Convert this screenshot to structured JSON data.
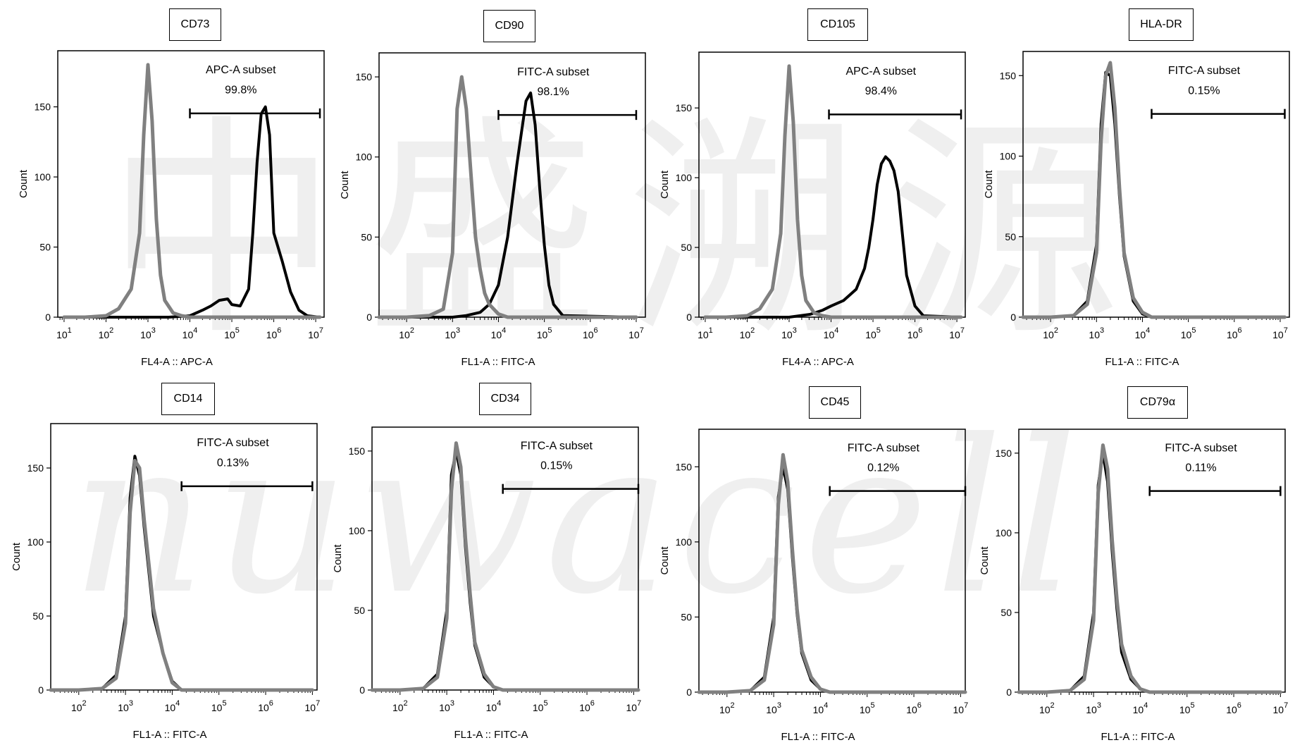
{
  "watermark": {
    "cjk_line": "中盛溯源",
    "latin_line": "nuwacell"
  },
  "colors": {
    "stained": "#000000",
    "isotype": "#808080",
    "frame": "#000000"
  },
  "chart_data": [
    {
      "type": "line",
      "marker": "CD73",
      "gate_label": "APC-A subset",
      "gate_percent": "99.8%",
      "gate_range_log10": [
        4.0,
        7.1
      ],
      "xlabel": "FL4-A :: APC-A",
      "ylabel": "Count",
      "x_scale": "log",
      "xlim_log10": [
        0.85,
        7.2
      ],
      "x_ticks": [
        "1",
        "2",
        "3",
        "4",
        "5",
        "6",
        "7"
      ],
      "ylim": [
        0,
        190
      ],
      "y_ticks": [
        0,
        50,
        100,
        150
      ],
      "series": [
        {
          "role": "isotype",
          "x_log10": [
            1.0,
            1.5,
            2.0,
            2.3,
            2.6,
            2.8,
            2.9,
            3.0,
            3.1,
            3.2,
            3.3,
            3.4,
            3.6,
            3.8,
            4.0,
            7.1
          ],
          "y": [
            0,
            0,
            1,
            6,
            20,
            60,
            130,
            180,
            140,
            70,
            30,
            12,
            3,
            1,
            0,
            0
          ]
        },
        {
          "role": "stained",
          "x_log10": [
            1.0,
            3.5,
            4.0,
            4.3,
            4.5,
            4.7,
            4.9,
            5.0,
            5.2,
            5.4,
            5.5,
            5.6,
            5.7,
            5.8,
            5.9,
            6.0,
            6.2,
            6.4,
            6.6,
            6.8,
            7.1
          ],
          "y": [
            0,
            0,
            1,
            5,
            8,
            12,
            13,
            9,
            8,
            20,
            60,
            110,
            145,
            150,
            130,
            60,
            40,
            18,
            5,
            1,
            0
          ]
        }
      ]
    },
    {
      "type": "line",
      "marker": "CD90",
      "gate_label": "FITC-A subset",
      "gate_percent": "98.1%",
      "gate_range_log10": [
        4.0,
        7.0
      ],
      "xlabel": "FL1-A :: FITC-A",
      "ylabel": "Count",
      "x_scale": "log",
      "xlim_log10": [
        1.4,
        7.2
      ],
      "x_ticks": [
        "2",
        "3",
        "4",
        "5",
        "6",
        "7"
      ],
      "ylim": [
        0,
        165
      ],
      "y_ticks": [
        0,
        50,
        100,
        150
      ],
      "series": [
        {
          "role": "isotype",
          "x_log10": [
            1.4,
            2.0,
            2.5,
            2.8,
            3.0,
            3.1,
            3.2,
            3.3,
            3.4,
            3.5,
            3.6,
            3.7,
            3.8,
            4.0,
            4.2,
            7.0
          ],
          "y": [
            0,
            0,
            1,
            5,
            40,
            130,
            150,
            130,
            90,
            50,
            30,
            15,
            8,
            2,
            0,
            0
          ]
        },
        {
          "role": "stained",
          "x_log10": [
            1.4,
            3.0,
            3.3,
            3.6,
            3.8,
            4.0,
            4.2,
            4.4,
            4.5,
            4.6,
            4.7,
            4.8,
            4.9,
            5.0,
            5.1,
            5.2,
            5.4,
            7.0
          ],
          "y": [
            0,
            0,
            1,
            3,
            8,
            20,
            50,
            95,
            115,
            135,
            140,
            120,
            80,
            45,
            20,
            8,
            1,
            0
          ]
        }
      ]
    },
    {
      "type": "line",
      "marker": "CD105",
      "gate_label": "APC-A subset",
      "gate_percent": "98.4%",
      "gate_range_log10": [
        3.95,
        7.1
      ],
      "xlabel": "FL4-A :: APC-A",
      "ylabel": "Count",
      "x_scale": "log",
      "xlim_log10": [
        0.85,
        7.2
      ],
      "x_ticks": [
        "1",
        "2",
        "3",
        "4",
        "5",
        "6",
        "7"
      ],
      "ylim": [
        0,
        190
      ],
      "y_ticks": [
        0,
        50,
        100,
        150
      ],
      "series": [
        {
          "role": "isotype",
          "x_log10": [
            1.0,
            1.5,
            2.0,
            2.3,
            2.6,
            2.8,
            2.9,
            3.0,
            3.1,
            3.2,
            3.3,
            3.4,
            3.6,
            3.8,
            4.0,
            7.1
          ],
          "y": [
            0,
            0,
            1,
            6,
            20,
            60,
            130,
            180,
            140,
            70,
            30,
            12,
            3,
            1,
            0,
            0
          ]
        },
        {
          "role": "stained",
          "x_log10": [
            1.0,
            3.0,
            3.5,
            3.8,
            4.0,
            4.3,
            4.6,
            4.8,
            4.9,
            5.0,
            5.1,
            5.2,
            5.3,
            5.4,
            5.5,
            5.6,
            5.7,
            5.8,
            6.0,
            6.2,
            7.1
          ],
          "y": [
            0,
            0,
            2,
            5,
            8,
            12,
            20,
            35,
            50,
            70,
            95,
            110,
            115,
            112,
            105,
            90,
            60,
            30,
            8,
            1,
            0
          ]
        }
      ]
    },
    {
      "type": "line",
      "marker": "HLA-DR",
      "gate_label": "FITC-A subset",
      "gate_percent": "0.15%",
      "gate_range_log10": [
        4.2,
        7.1
      ],
      "xlabel": "FL1-A :: FITC-A",
      "ylabel": "Count",
      "x_scale": "log",
      "xlim_log10": [
        1.4,
        7.2
      ],
      "x_ticks": [
        "2",
        "3",
        "4",
        "5",
        "6",
        "7"
      ],
      "ylim": [
        0,
        165
      ],
      "y_ticks": [
        0,
        50,
        100,
        150
      ],
      "series": [
        {
          "role": "isotype",
          "x_log10": [
            1.4,
            2.0,
            2.5,
            2.8,
            3.0,
            3.1,
            3.2,
            3.3,
            3.4,
            3.5,
            3.6,
            3.8,
            4.0,
            4.2,
            7.1
          ],
          "y": [
            0,
            0,
            1,
            8,
            40,
            110,
            150,
            158,
            130,
            80,
            40,
            12,
            3,
            0,
            0
          ]
        },
        {
          "role": "stained",
          "x_log10": [
            1.4,
            2.0,
            2.5,
            2.8,
            3.0,
            3.1,
            3.2,
            3.3,
            3.4,
            3.5,
            3.6,
            3.8,
            4.0,
            4.2,
            7.1
          ],
          "y": [
            0,
            0,
            1,
            10,
            45,
            120,
            152,
            150,
            120,
            75,
            38,
            10,
            2,
            0,
            0
          ]
        }
      ]
    },
    {
      "type": "line",
      "marker": "CD14",
      "gate_label": "FITC-A subset",
      "gate_percent": "0.13%",
      "gate_range_log10": [
        4.2,
        7.0
      ],
      "xlabel": "FL1-A :: FITC-A",
      "ylabel": "Count",
      "x_scale": "log",
      "xlim_log10": [
        1.4,
        7.1
      ],
      "x_ticks": [
        "2",
        "3",
        "4",
        "5",
        "6",
        "7"
      ],
      "ylim": [
        0,
        180
      ],
      "y_ticks": [
        0,
        50,
        100,
        150
      ],
      "series": [
        {
          "role": "isotype",
          "x_log10": [
            1.4,
            2.0,
            2.5,
            2.8,
            3.0,
            3.1,
            3.2,
            3.3,
            3.4,
            3.5,
            3.6,
            3.8,
            4.0,
            4.2,
            7.0
          ],
          "y": [
            0,
            0,
            1,
            8,
            45,
            120,
            155,
            150,
            115,
            85,
            55,
            25,
            5,
            0,
            0
          ]
        },
        {
          "role": "stained",
          "x_log10": [
            1.4,
            2.0,
            2.5,
            2.8,
            3.0,
            3.1,
            3.2,
            3.3,
            3.4,
            3.5,
            3.6,
            3.8,
            4.0,
            4.2,
            7.0
          ],
          "y": [
            0,
            0,
            1,
            10,
            50,
            130,
            158,
            145,
            110,
            80,
            50,
            25,
            6,
            0,
            0
          ]
        }
      ]
    },
    {
      "type": "line",
      "marker": "CD34",
      "gate_label": "FITC-A subset",
      "gate_percent": "0.15%",
      "gate_range_log10": [
        4.2,
        7.1
      ],
      "xlabel": "FL1-A :: FITC-A",
      "ylabel": "Count",
      "x_scale": "log",
      "xlim_log10": [
        1.4,
        7.1
      ],
      "x_ticks": [
        "2",
        "3",
        "4",
        "5",
        "6",
        "7"
      ],
      "ylim": [
        0,
        165
      ],
      "y_ticks": [
        0,
        50,
        100,
        150
      ],
      "series": [
        {
          "role": "isotype",
          "x_log10": [
            1.4,
            2.0,
            2.5,
            2.8,
            3.0,
            3.1,
            3.2,
            3.3,
            3.4,
            3.5,
            3.6,
            3.8,
            4.0,
            4.2,
            7.1
          ],
          "y": [
            0,
            0,
            1,
            8,
            45,
            125,
            155,
            140,
            95,
            60,
            30,
            10,
            2,
            0,
            0
          ]
        },
        {
          "role": "stained",
          "x_log10": [
            1.4,
            2.0,
            2.5,
            2.8,
            3.0,
            3.1,
            3.2,
            3.3,
            3.4,
            3.5,
            3.6,
            3.8,
            4.0,
            4.2,
            7.1
          ],
          "y": [
            0,
            0,
            1,
            10,
            50,
            135,
            150,
            135,
            90,
            55,
            28,
            8,
            2,
            0,
            0
          ]
        }
      ]
    },
    {
      "type": "line",
      "marker": "CD45",
      "gate_label": "FITC-A subset",
      "gate_percent": "0.12%",
      "gate_range_log10": [
        4.2,
        7.1
      ],
      "xlabel": "FL1-A :: FITC-A",
      "ylabel": "Count",
      "x_scale": "log",
      "xlim_log10": [
        1.4,
        7.1
      ],
      "x_ticks": [
        "2",
        "3",
        "4",
        "5",
        "6",
        "7"
      ],
      "ylim": [
        0,
        175
      ],
      "y_ticks": [
        0,
        50,
        100,
        150
      ],
      "series": [
        {
          "role": "isotype",
          "x_log10": [
            1.4,
            2.0,
            2.5,
            2.8,
            3.0,
            3.1,
            3.2,
            3.3,
            3.4,
            3.5,
            3.6,
            3.8,
            4.0,
            4.2,
            7.1
          ],
          "y": [
            0,
            0,
            1,
            8,
            45,
            125,
            158,
            140,
            95,
            55,
            28,
            10,
            2,
            0,
            0
          ]
        },
        {
          "role": "stained",
          "x_log10": [
            1.4,
            2.0,
            2.5,
            2.8,
            3.0,
            3.1,
            3.2,
            3.3,
            3.4,
            3.5,
            3.6,
            3.8,
            4.0,
            4.2,
            7.1
          ],
          "y": [
            0,
            0,
            1,
            10,
            50,
            130,
            150,
            135,
            90,
            52,
            26,
            8,
            2,
            0,
            0
          ]
        }
      ]
    },
    {
      "type": "line",
      "marker": "CD79α",
      "gate_label": "FITC-A subset",
      "gate_percent": "0.11%",
      "gate_range_log10": [
        4.2,
        7.0
      ],
      "xlabel": "FL1-A :: FITC-A",
      "ylabel": "Count",
      "x_scale": "log",
      "xlim_log10": [
        1.4,
        7.1
      ],
      "x_ticks": [
        "2",
        "3",
        "4",
        "5",
        "6",
        "7"
      ],
      "ylim": [
        0,
        165
      ],
      "y_ticks": [
        0,
        50,
        100,
        150
      ],
      "series": [
        {
          "role": "isotype",
          "x_log10": [
            1.4,
            2.0,
            2.5,
            2.8,
            3.0,
            3.1,
            3.2,
            3.3,
            3.4,
            3.5,
            3.6,
            3.8,
            4.0,
            4.2,
            7.0
          ],
          "y": [
            0,
            0,
            1,
            8,
            45,
            125,
            155,
            140,
            95,
            58,
            30,
            10,
            2,
            0,
            0
          ]
        },
        {
          "role": "stained",
          "x_log10": [
            1.4,
            2.0,
            2.5,
            2.8,
            3.0,
            3.1,
            3.2,
            3.3,
            3.4,
            3.5,
            3.6,
            3.8,
            4.0,
            4.2,
            7.0
          ],
          "y": [
            0,
            0,
            1,
            10,
            50,
            130,
            150,
            132,
            88,
            52,
            25,
            8,
            2,
            0,
            0
          ]
        }
      ]
    }
  ]
}
